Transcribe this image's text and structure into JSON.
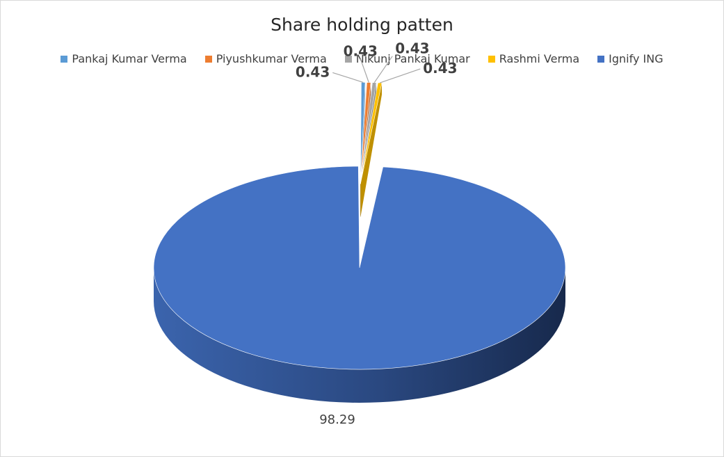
{
  "chart_data": {
    "type": "pie",
    "title": "Share holding patten",
    "legend_position": "top",
    "slices": [
      {
        "label": "Pankaj Kumar Verma",
        "value": 0.43,
        "display": "0.43",
        "color": "#5b9bd5"
      },
      {
        "label": "Piyushkumar Verma",
        "value": 0.43,
        "display": "0.43",
        "color": "#ed7d31"
      },
      {
        "label": "Nikunj Pankaj Kumar",
        "value": 0.43,
        "display": "0.43",
        "color": "#a5a5a5"
      },
      {
        "label": "Rashmi Verma",
        "value": 0.43,
        "display": "0.43",
        "color": "#ffc000"
      },
      {
        "label": "Ignify ING",
        "value": 98.29,
        "display": "98.29",
        "color": "#4472c4"
      }
    ]
  }
}
